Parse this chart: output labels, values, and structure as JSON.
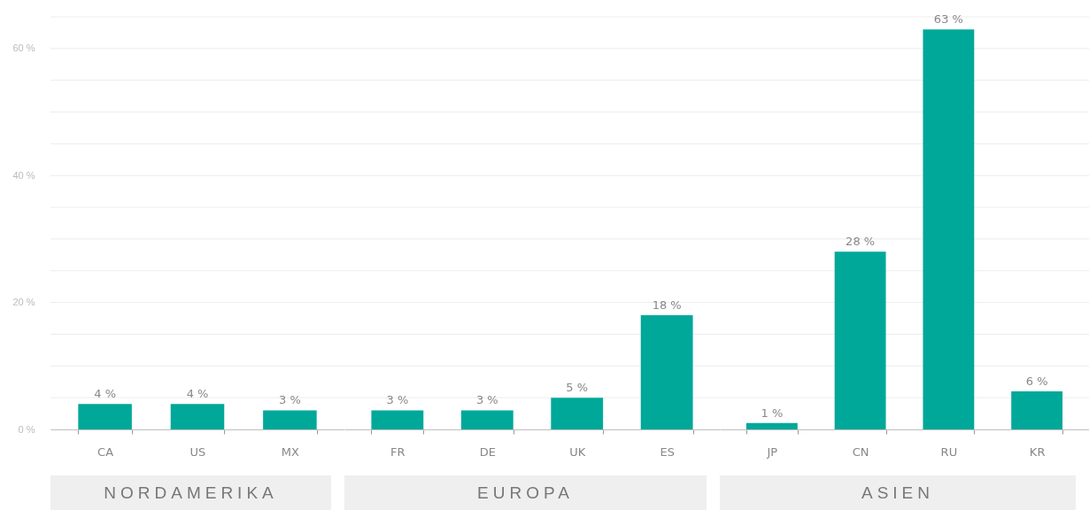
{
  "chart_data": [
    {
      "type": "bar",
      "xlabel": "NORDAMERIKA",
      "categories": [
        "CA",
        "US",
        "MX"
      ],
      "values": [
        4,
        4,
        3
      ],
      "value_labels": [
        "4 %",
        "4 %",
        "3 %"
      ],
      "color": "#00a89a",
      "ylim": [
        0,
        65
      ],
      "yticks": [
        {
          "value": 0,
          "label": "0 %"
        },
        {
          "value": 5,
          "label": null
        },
        {
          "value": 10,
          "label": null
        },
        {
          "value": 15,
          "label": null
        },
        {
          "value": 20,
          "label": "20 %"
        },
        {
          "value": 25,
          "label": null
        },
        {
          "value": 30,
          "label": null
        },
        {
          "value": 35,
          "label": null
        },
        {
          "value": 40,
          "label": "40 %"
        },
        {
          "value": 45,
          "label": null
        },
        {
          "value": 50,
          "label": null
        },
        {
          "value": 55,
          "label": null
        },
        {
          "value": 60,
          "label": "60 %"
        },
        {
          "value": 65,
          "label": null
        }
      ],
      "grid": "y"
    },
    {
      "type": "bar",
      "xlabel": "EUROPA",
      "categories": [
        "FR",
        "DE",
        "UK",
        "ES"
      ],
      "values": [
        3,
        3,
        5,
        18
      ],
      "value_labels": [
        "3 %",
        "3 %",
        "5 %",
        "18 %"
      ],
      "color": "#00a89a",
      "ylim": [
        0,
        65
      ],
      "yticks": [
        0,
        5,
        10,
        15,
        20,
        25,
        30,
        35,
        40,
        45,
        50,
        55,
        60,
        65
      ],
      "grid": "y",
      "tick_labels": "x"
    },
    {
      "type": "bar",
      "xlabel": "ASIEN",
      "categories": [
        "JP",
        "CN",
        "RU",
        "KR"
      ],
      "values": [
        1,
        28,
        63,
        6
      ],
      "value_labels": [
        "1 %",
        "28 %",
        "63 %",
        "6 %"
      ],
      "color": "#00a89a",
      "ylim": [
        0,
        65
      ],
      "yticks": [
        0,
        5,
        10,
        15,
        20,
        25,
        30,
        35,
        40,
        45,
        50,
        55,
        60,
        65
      ],
      "grid": "y",
      "tick_labels": "x"
    }
  ]
}
